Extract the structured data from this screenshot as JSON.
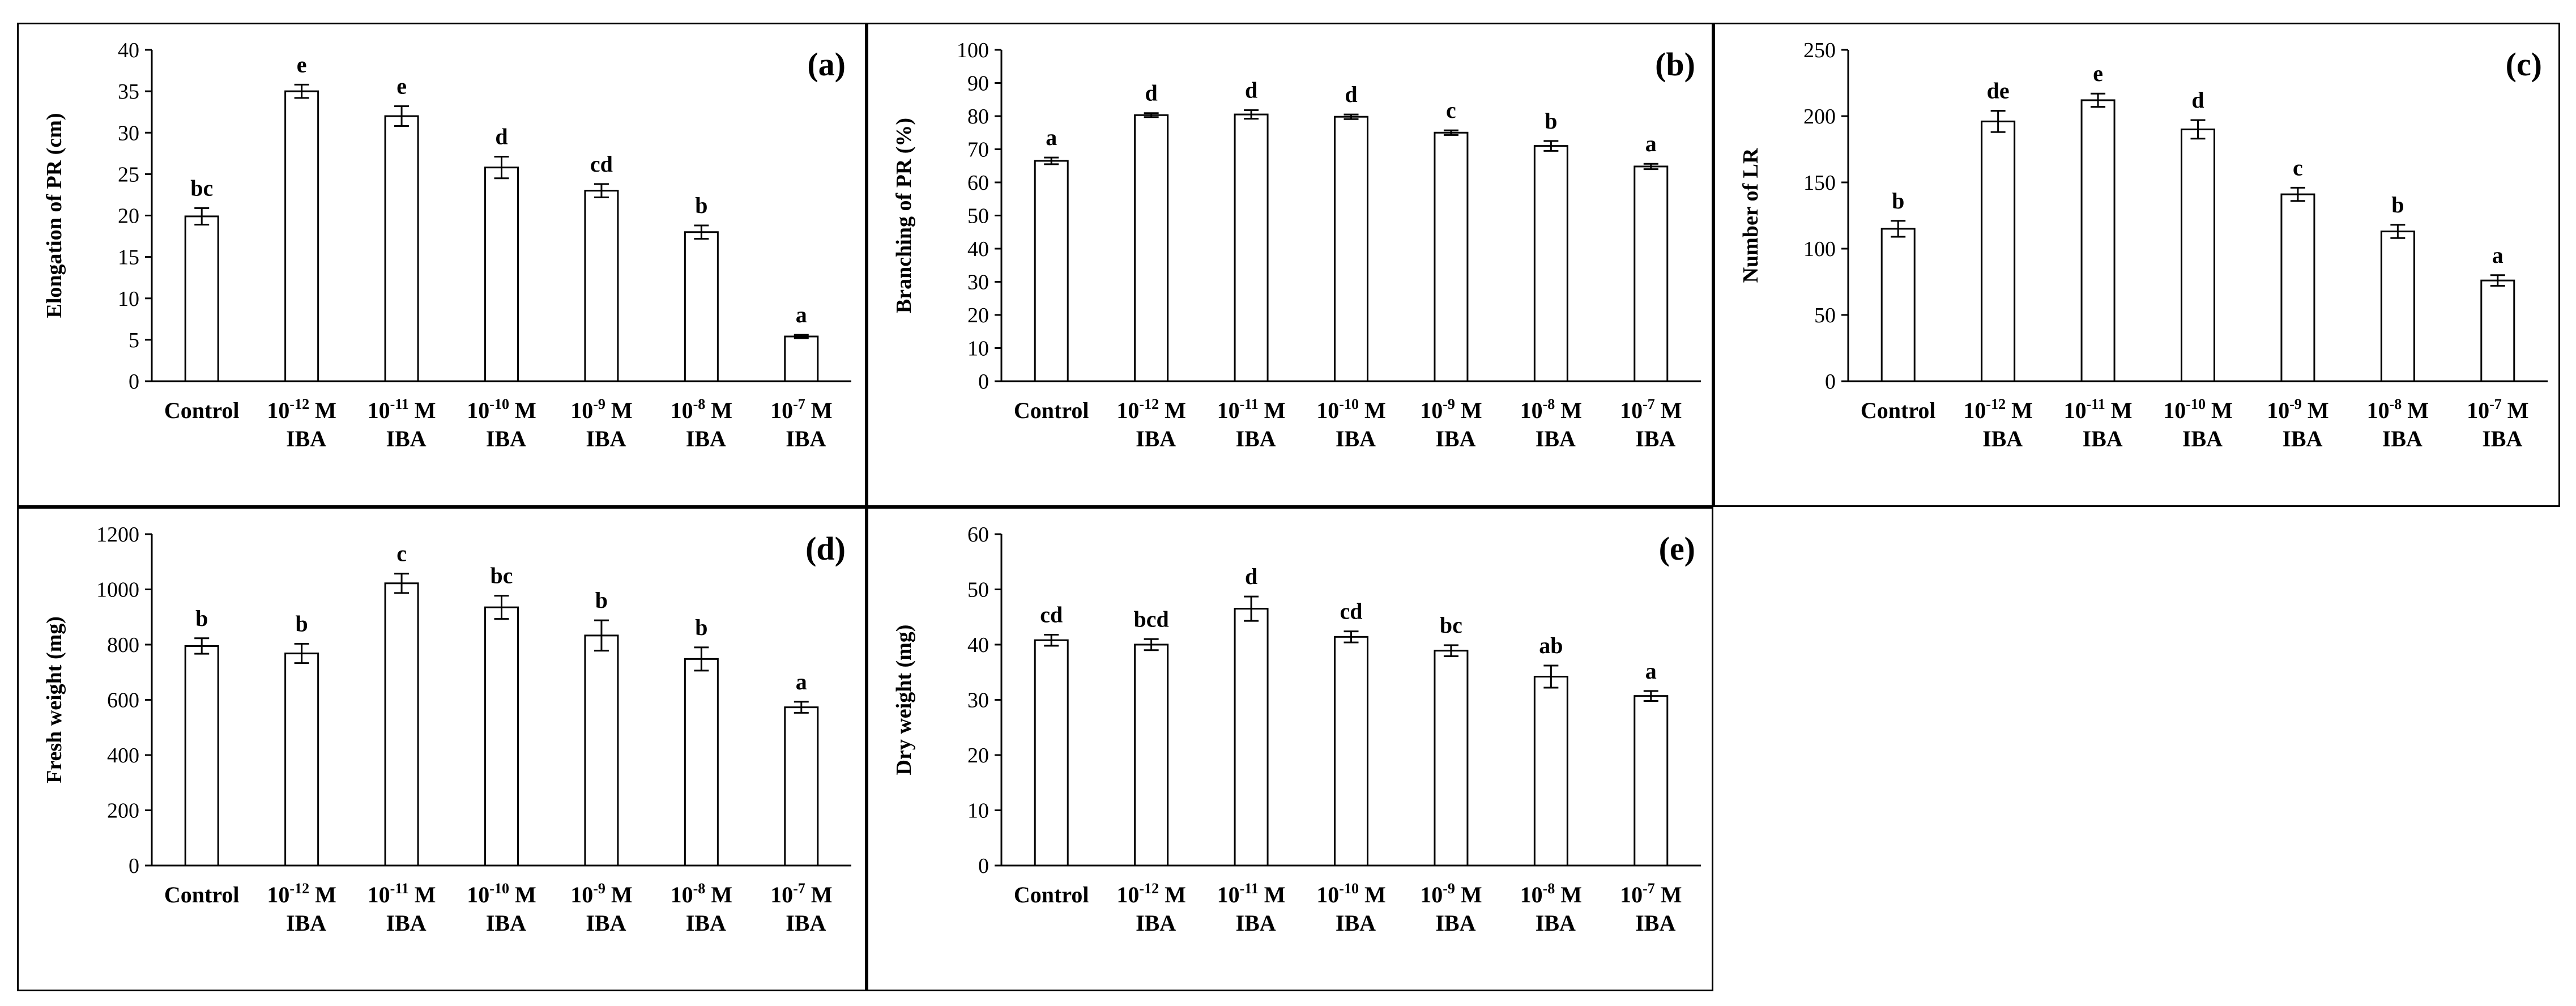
{
  "chart_data": [
    {
      "id": "a",
      "type": "bar",
      "panel_label": "(a)",
      "ylabel": "Elongation of PR (cm)",
      "xlabel": "",
      "ylim": [
        0,
        40
      ],
      "yticks": [
        0,
        5,
        10,
        15,
        20,
        25,
        30,
        35,
        40
      ],
      "categories": [
        {
          "main": "Control",
          "exp": "",
          "unit": "",
          "line2": ""
        },
        {
          "main": "10",
          "exp": "-12",
          "unit": " M",
          "line2": "IBA"
        },
        {
          "main": "10",
          "exp": "-11",
          "unit": " M",
          "line2": "IBA"
        },
        {
          "main": "10",
          "exp": "-10",
          "unit": " M",
          "line2": "IBA"
        },
        {
          "main": "10",
          "exp": "-9",
          "unit": " M",
          "line2": "IBA"
        },
        {
          "main": "10",
          "exp": "-8",
          "unit": " M",
          "line2": "IBA"
        },
        {
          "main": "10",
          "exp": "-7",
          "unit": " M",
          "line2": "IBA"
        }
      ],
      "values": [
        19.9,
        35.0,
        32.0,
        25.8,
        23.0,
        18.0,
        5.4
      ],
      "errors": [
        1.0,
        0.8,
        1.2,
        1.3,
        0.8,
        0.8,
        0.2
      ],
      "letters": [
        "bc",
        "e",
        "e",
        "d",
        "cd",
        "b",
        "a"
      ]
    },
    {
      "id": "b",
      "type": "bar",
      "panel_label": "(b)",
      "ylabel": "Branching of PR (%)",
      "xlabel": "",
      "ylim": [
        0,
        100
      ],
      "yticks": [
        0,
        10,
        20,
        30,
        40,
        50,
        60,
        70,
        80,
        90,
        100
      ],
      "categories": [
        {
          "main": "Control",
          "exp": "",
          "unit": "",
          "line2": ""
        },
        {
          "main": "10",
          "exp": "-12",
          "unit": " M",
          "line2": "IBA"
        },
        {
          "main": "10",
          "exp": "-11",
          "unit": " M",
          "line2": "IBA"
        },
        {
          "main": "10",
          "exp": "-10",
          "unit": " M",
          "line2": "IBA"
        },
        {
          "main": "10",
          "exp": "-9",
          "unit": " M",
          "line2": "IBA"
        },
        {
          "main": "10",
          "exp": "-8",
          "unit": " M",
          "line2": "IBA"
        },
        {
          "main": "10",
          "exp": "-7",
          "unit": " M",
          "line2": "IBA"
        }
      ],
      "values": [
        66.5,
        80.3,
        80.5,
        79.8,
        75.0,
        71.0,
        64.8
      ],
      "errors": [
        1.0,
        0.6,
        1.3,
        0.7,
        0.7,
        1.5,
        0.8
      ],
      "letters": [
        "a",
        "d",
        "d",
        "d",
        "c",
        "b",
        "a"
      ]
    },
    {
      "id": "c",
      "type": "bar",
      "panel_label": "(c)",
      "ylabel": "Number of LR",
      "xlabel": "",
      "ylim": [
        0,
        250
      ],
      "yticks": [
        0,
        50,
        100,
        150,
        200,
        250
      ],
      "categories": [
        {
          "main": "Control",
          "exp": "",
          "unit": "",
          "line2": ""
        },
        {
          "main": "10",
          "exp": "-12",
          "unit": " M",
          "line2": "IBA"
        },
        {
          "main": "10",
          "exp": "-11",
          "unit": " M",
          "line2": "IBA"
        },
        {
          "main": "10",
          "exp": "-10",
          "unit": " M",
          "line2": "IBA"
        },
        {
          "main": "10",
          "exp": "-9",
          "unit": " M",
          "line2": "IBA"
        },
        {
          "main": "10",
          "exp": "-8",
          "unit": " M",
          "line2": "IBA"
        },
        {
          "main": "10",
          "exp": "-7",
          "unit": " M",
          "line2": "IBA"
        }
      ],
      "values": [
        115,
        196,
        212,
        190,
        141,
        113,
        76
      ],
      "errors": [
        6,
        8,
        5,
        7,
        5,
        5,
        4
      ],
      "letters": [
        "b",
        "de",
        "e",
        "d",
        "c",
        "b",
        "a"
      ]
    },
    {
      "id": "d",
      "type": "bar",
      "panel_label": "(d)",
      "ylabel": "Fresh weight (mg)",
      "xlabel": "",
      "ylim": [
        0,
        1200
      ],
      "yticks": [
        0,
        200,
        400,
        600,
        800,
        1000,
        1200
      ],
      "categories": [
        {
          "main": "Control",
          "exp": "",
          "unit": "",
          "line2": ""
        },
        {
          "main": "10",
          "exp": "-12",
          "unit": " M",
          "line2": "IBA"
        },
        {
          "main": "10",
          "exp": "-11",
          "unit": " M",
          "line2": "IBA"
        },
        {
          "main": "10",
          "exp": "-10",
          "unit": " M",
          "line2": "IBA"
        },
        {
          "main": "10",
          "exp": "-9",
          "unit": " M",
          "line2": "IBA"
        },
        {
          "main": "10",
          "exp": "-8",
          "unit": " M",
          "line2": "IBA"
        },
        {
          "main": "10",
          "exp": "-7",
          "unit": " M",
          "line2": "IBA"
        }
      ],
      "values": [
        795,
        768,
        1022,
        935,
        833,
        748,
        573
      ],
      "errors": [
        28,
        35,
        35,
        42,
        55,
        42,
        20
      ],
      "letters": [
        "b",
        "b",
        "c",
        "bc",
        "b",
        "b",
        "a"
      ]
    },
    {
      "id": "e",
      "type": "bar",
      "panel_label": "(e)",
      "ylabel": "Dry weight (mg)",
      "xlabel": "",
      "ylim": [
        0,
        60
      ],
      "yticks": [
        0,
        10,
        20,
        30,
        40,
        50,
        60
      ],
      "categories": [
        {
          "main": "Control",
          "exp": "",
          "unit": "",
          "line2": ""
        },
        {
          "main": "10",
          "exp": "-12",
          "unit": " M",
          "line2": "IBA"
        },
        {
          "main": "10",
          "exp": "-11",
          "unit": " M",
          "line2": "IBA"
        },
        {
          "main": "10",
          "exp": "-10",
          "unit": " M",
          "line2": "IBA"
        },
        {
          "main": "10",
          "exp": "-9",
          "unit": " M",
          "line2": "IBA"
        },
        {
          "main": "10",
          "exp": "-8",
          "unit": " M",
          "line2": "IBA"
        },
        {
          "main": "10",
          "exp": "-7",
          "unit": " M",
          "line2": "IBA"
        }
      ],
      "values": [
        40.8,
        40.0,
        46.5,
        41.4,
        38.9,
        34.2,
        30.7
      ],
      "errors": [
        1.0,
        1.0,
        2.2,
        1.0,
        1.0,
        2.0,
        0.9
      ],
      "letters": [
        "cd",
        "bcd",
        "d",
        "cd",
        "bc",
        "ab",
        "a"
      ]
    }
  ]
}
